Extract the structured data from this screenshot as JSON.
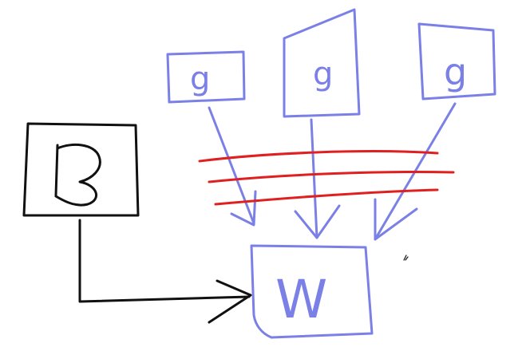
{
  "nodes": {
    "source": {
      "label": "B"
    },
    "inputs": [
      {
        "label": "g"
      },
      {
        "label": "g"
      },
      {
        "label": "g"
      }
    ],
    "target": {
      "label": "W"
    }
  },
  "colors": {
    "black": "#111111",
    "blue": "#7b80e6",
    "red": "#e02020"
  }
}
